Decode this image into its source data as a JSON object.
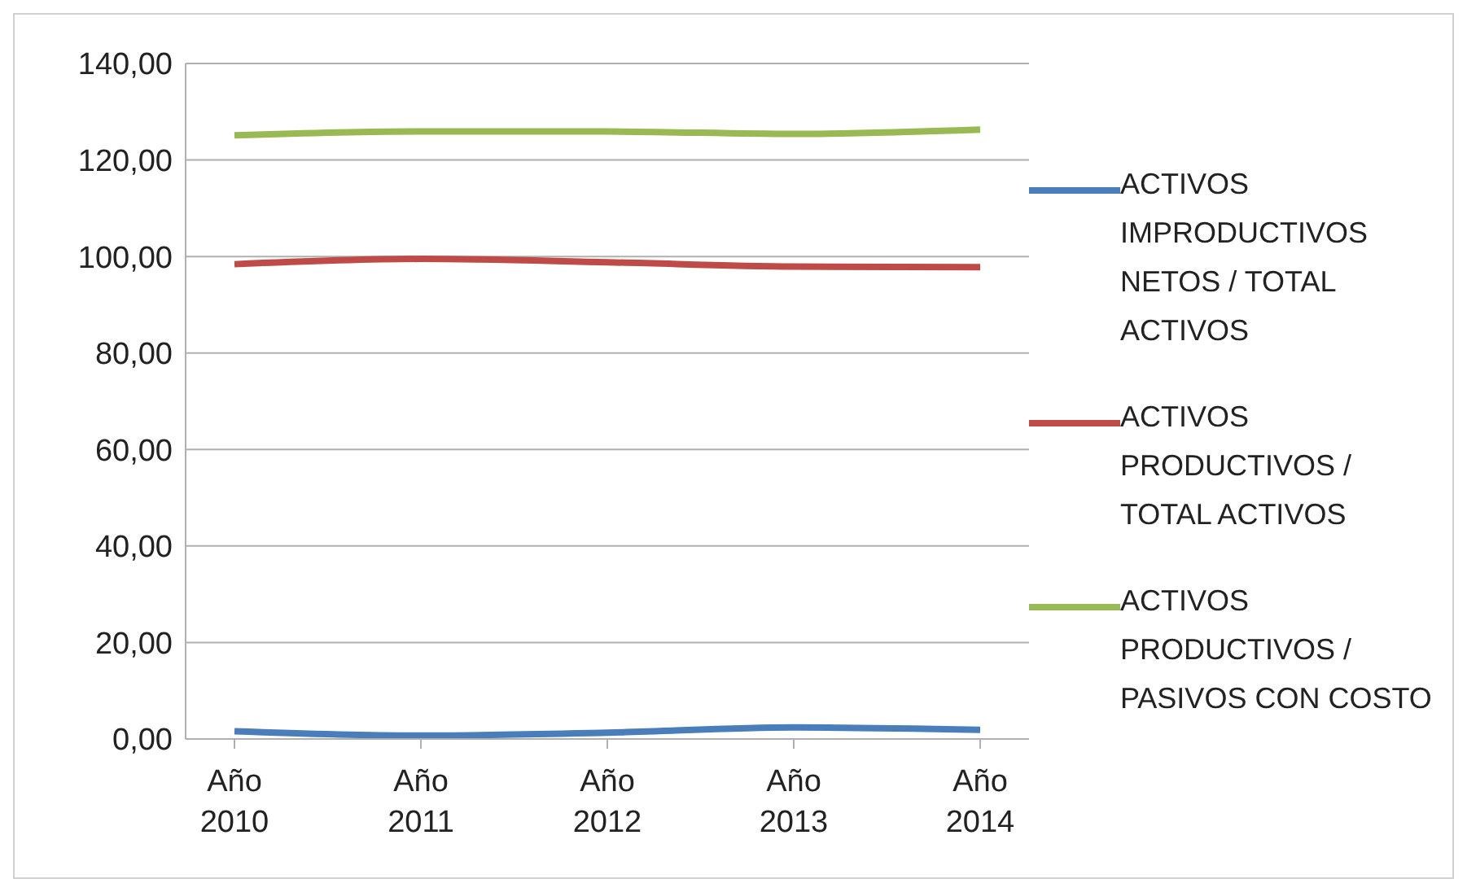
{
  "chart_data": {
    "type": "line",
    "categories": [
      "Año 2010",
      "Año 2011",
      "Año 2012",
      "Año 2013",
      "Año 2014"
    ],
    "series": [
      {
        "name": "ACTIVOS IMPRODUCTIVOS NETOS / TOTAL ACTIVOS",
        "color": "#4a7ebb",
        "values": [
          1.6,
          0.7,
          1.3,
          2.4,
          1.9
        ]
      },
      {
        "name": "ACTIVOS PRODUCTIVOS / TOTAL ACTIVOS",
        "color": "#be4b48",
        "values": [
          98.4,
          99.5,
          98.8,
          97.9,
          97.8
        ]
      },
      {
        "name": "ACTIVOS PRODUCTIVOS / PASIVOS CON COSTO",
        "color": "#98b954",
        "values": [
          125.1,
          125.9,
          125.9,
          125.4,
          126.3
        ]
      }
    ],
    "ylim": [
      0,
      140
    ],
    "yticks": [
      {
        "value": 0,
        "label": "0,00"
      },
      {
        "value": 20,
        "label": "20,00"
      },
      {
        "value": 40,
        "label": "40,00"
      },
      {
        "value": 60,
        "label": "60,00"
      },
      {
        "value": 80,
        "label": "80,00"
      },
      {
        "value": 100,
        "label": "100,00"
      },
      {
        "value": 120,
        "label": "120,00"
      },
      {
        "value": 140,
        "label": "140,00"
      }
    ],
    "grid": "y",
    "legend": "right",
    "marker": "none",
    "line_style": "solid"
  }
}
